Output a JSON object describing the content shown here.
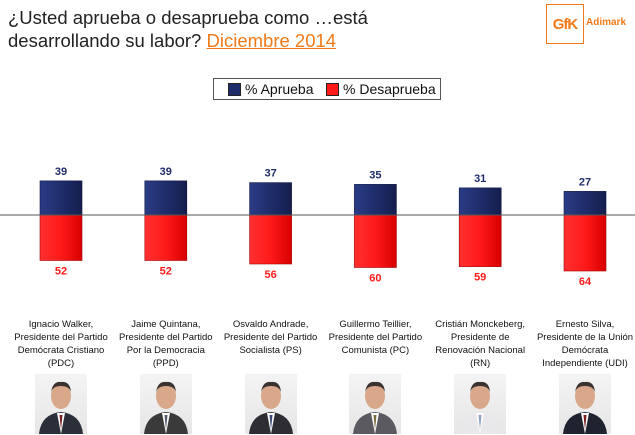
{
  "header": {
    "title_line1": "¿Usted aprueba o desaprueba como …está",
    "title_line2": "desarrollando su labor?",
    "date": "Diciembre 2014"
  },
  "logo": {
    "mark": "GfK",
    "sub": "Adimark"
  },
  "colors": {
    "approve": "#1F2D6B",
    "disapprove": "#FF1A1A",
    "accent": "#F07A1A"
  },
  "chart_data": {
    "type": "bar",
    "title": "¿Usted aprueba o desaprueba como …está desarrollando su labor? Diciembre 2014",
    "categories": [
      "Ignacio Walker,\nPresidente del Partido\nDemócrata Cristiano\n(PDC)",
      "Jaime Quintana,\nPresidente del Partido\nPor la Democracia\n(PPD)",
      "Osvaldo Andrade,\nPresidente del Partido\nSocialista (PS)",
      "Guillermo Teillier,\nPresidente del Partido\nComunista (PC)",
      "Cristián Monckeberg,\nPresidente de\nRenovación Nacional\n(RN)",
      "Ernesto Silva,\nPresidente de la Unión\nDemócrata\nIndependiente (UDI)"
    ],
    "series": [
      {
        "name": "% Aprueba",
        "values": [
          39,
          39,
          37,
          35,
          31,
          27
        ]
      },
      {
        "name": "% Desaprueba",
        "values": [
          52,
          52,
          56,
          60,
          59,
          64
        ]
      }
    ],
    "legend": "top-center",
    "xlabel": "",
    "ylabel": "",
    "ylim": [
      -64,
      39
    ]
  }
}
